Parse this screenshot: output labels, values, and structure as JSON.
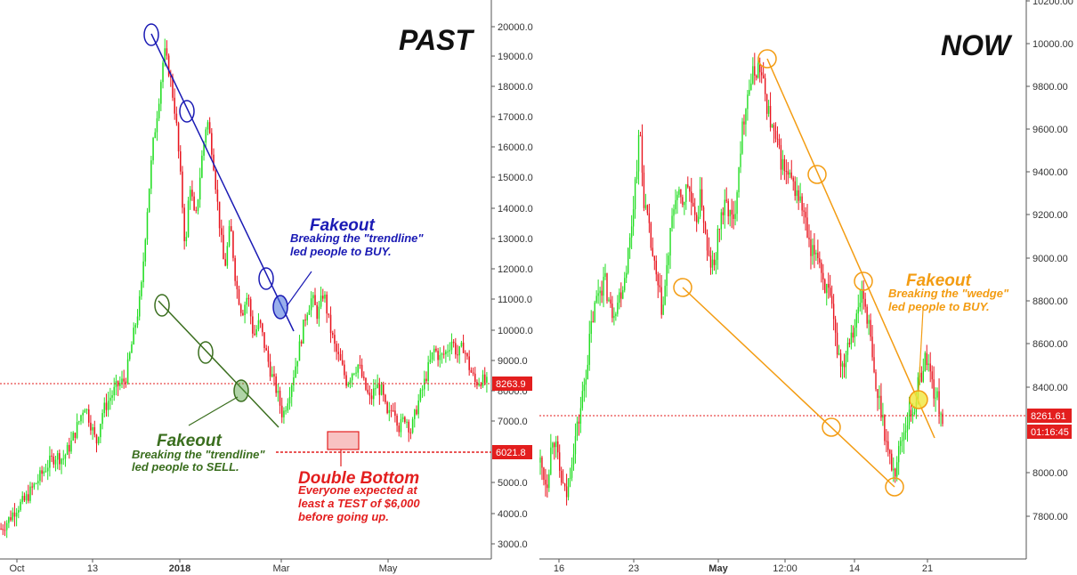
{
  "chart_data": [
    {
      "type": "candlestick",
      "panel": "left",
      "title": "PAST",
      "ylim": [
        2500,
        21000
      ],
      "y_ticks": [
        "20000.0",
        "19000.0",
        "18000.0",
        "17000.0",
        "16000.0",
        "15000.0",
        "14000.0",
        "13000.0",
        "12000.0",
        "11000.0",
        "10000.0",
        "9000.0",
        "8000.0",
        "7000.0",
        "5000.0",
        "4000.0",
        "3000.0"
      ],
      "x_ticks": [
        {
          "label": "Oct",
          "bold": false
        },
        {
          "label": "13",
          "bold": false
        },
        {
          "label": "2018",
          "bold": true
        },
        {
          "label": "Mar",
          "bold": false
        },
        {
          "label": "May",
          "bold": false
        }
      ],
      "price_lines": [
        {
          "value": 8263.9,
          "label": "8263.9",
          "color": "#e31e1e"
        },
        {
          "value": 6021.8,
          "label": "6021.8",
          "color": "#e31e1e"
        }
      ],
      "series": [
        {
          "name": "price",
          "points": [
            [
              0,
              3500
            ],
            [
              4,
              3800
            ],
            [
              8,
              4200
            ],
            [
              12,
              4400
            ],
            [
              16,
              4800
            ],
            [
              20,
              5200
            ],
            [
              24,
              5600
            ],
            [
              28,
              5900
            ],
            [
              32,
              5800
            ],
            [
              36,
              6300
            ],
            [
              40,
              7000
            ],
            [
              43,
              7600
            ],
            [
              46,
              7000
            ],
            [
              49,
              6300
            ],
            [
              52,
              7300
            ],
            [
              56,
              7800
            ],
            [
              60,
              8200
            ],
            [
              64,
              8400
            ],
            [
              68,
              9800
            ],
            [
              72,
              11200
            ],
            [
              75,
              13800
            ],
            [
              78,
              16000
            ],
            [
              81,
              17500
            ],
            [
              84,
              19200
            ],
            [
              87,
              18400
            ],
            [
              90,
              17000
            ],
            [
              93,
              14500
            ],
            [
              95,
              12500
            ],
            [
              97,
              15000
            ],
            [
              100,
              13500
            ],
            [
              103,
              15500
            ],
            [
              106,
              17000
            ],
            [
              109,
              15800
            ],
            [
              112,
              13800
            ],
            [
              115,
              12000
            ],
            [
              118,
              13500
            ],
            [
              121,
              11500
            ],
            [
              124,
              10600
            ],
            [
              127,
              11200
            ],
            [
              130,
              9800
            ],
            [
              133,
              10300
            ],
            [
              136,
              9400
            ],
            [
              139,
              8600
            ],
            [
              142,
              8000
            ],
            [
              145,
              7200
            ],
            [
              148,
              7900
            ],
            [
              151,
              8700
            ],
            [
              154,
              9600
            ],
            [
              157,
              10600
            ],
            [
              160,
              11100
            ],
            [
              163,
              10500
            ],
            [
              166,
              11300
            ],
            [
              169,
              10200
            ],
            [
              172,
              9400
            ],
            [
              175,
              8900
            ],
            [
              178,
              8300
            ],
            [
              181,
              8700
            ],
            [
              184,
              8900
            ],
            [
              187,
              8200
            ],
            [
              190,
              7700
            ],
            [
              193,
              8200
            ],
            [
              196,
              8000
            ],
            [
              199,
              7100
            ],
            [
              202,
              7600
            ],
            [
              205,
              6800
            ],
            [
              208,
              7200
            ],
            [
              211,
              6700
            ],
            [
              214,
              7500
            ],
            [
              217,
              8100
            ],
            [
              220,
              8800
            ],
            [
              223,
              9400
            ],
            [
              226,
              9100
            ],
            [
              229,
              9300
            ],
            [
              232,
              9700
            ],
            [
              235,
              9200
            ],
            [
              238,
              9500
            ],
            [
              241,
              8800
            ],
            [
              244,
              8300
            ],
            [
              247,
              8400
            ],
            [
              250,
              8263.9
            ]
          ]
        }
      ],
      "annotations": [
        {
          "title": "Fakeout",
          "lines": [
            "Breaking the \"trendline\"",
            "led people to BUY."
          ],
          "color": "#1a1ab4"
        },
        {
          "title": "Fakeout",
          "lines": [
            "Breaking the \"trendline\"",
            "led people to SELL."
          ],
          "color": "#3a6e1e"
        },
        {
          "title": "Double Bottom",
          "lines": [
            "Everyone expected at",
            "least  a TEST of $6,000",
            "before going up."
          ],
          "color": "#e31e1e"
        }
      ]
    },
    {
      "type": "candlestick",
      "panel": "right",
      "title": "NOW",
      "ylim": [
        7650,
        10220
      ],
      "y_ticks": [
        "10200.00",
        "10000.00",
        "9800.00",
        "9600.00",
        "9400.00",
        "9200.00",
        "9000.00",
        "8800.00",
        "8600.00",
        "8400.00",
        "8000.00",
        "7800.00"
      ],
      "x_ticks": [
        {
          "label": "16",
          "bold": false
        },
        {
          "label": "23",
          "bold": false
        },
        {
          "label": "May",
          "bold": true
        },
        {
          "label": "12:00",
          "bold": false
        },
        {
          "label": "14",
          "bold": false
        },
        {
          "label": "21",
          "bold": false
        }
      ],
      "price_lines": [
        {
          "value": 8261.61,
          "label": "8261.61",
          "color": "#e31e1e"
        }
      ],
      "countdown": "01:16:45",
      "series": [
        {
          "name": "price",
          "points": [
            [
              0,
              8050
            ],
            [
              4,
              7950
            ],
            [
              8,
              8200
            ],
            [
              12,
              8000
            ],
            [
              16,
              7880
            ],
            [
              20,
              8100
            ],
            [
              24,
              8250
            ],
            [
              28,
              8450
            ],
            [
              32,
              8700
            ],
            [
              36,
              8850
            ],
            [
              40,
              8900
            ],
            [
              44,
              8750
            ],
            [
              48,
              8800
            ],
            [
              52,
              8900
            ],
            [
              56,
              9100
            ],
            [
              60,
              9450
            ],
            [
              62,
              9600
            ],
            [
              64,
              9300
            ],
            [
              68,
              9100
            ],
            [
              72,
              8900
            ],
            [
              76,
              8750
            ],
            [
              80,
              9050
            ],
            [
              84,
              9300
            ],
            [
              88,
              9250
            ],
            [
              92,
              9350
            ],
            [
              96,
              9150
            ],
            [
              100,
              9300
            ],
            [
              104,
              9000
            ],
            [
              108,
              8950
            ],
            [
              112,
              9200
            ],
            [
              116,
              9250
            ],
            [
              120,
              9150
            ],
            [
              124,
              9500
            ],
            [
              128,
              9750
            ],
            [
              132,
              9850
            ],
            [
              136,
              9900
            ],
            [
              140,
              9750
            ],
            [
              144,
              9600
            ],
            [
              148,
              9500
            ],
            [
              152,
              9400
            ],
            [
              156,
              9350
            ],
            [
              160,
              9300
            ],
            [
              164,
              9200
            ],
            [
              168,
              9000
            ],
            [
              172,
              9050
            ],
            [
              176,
              8900
            ],
            [
              180,
              8800
            ],
            [
              184,
              8600
            ],
            [
              188,
              8500
            ],
            [
              192,
              8650
            ],
            [
              196,
              8700
            ],
            [
              200,
              8850
            ],
            [
              204,
              8700
            ],
            [
              208,
              8400
            ],
            [
              212,
              8300
            ],
            [
              216,
              8100
            ],
            [
              220,
              8000
            ],
            [
              224,
              8150
            ],
            [
              228,
              8250
            ],
            [
              232,
              8300
            ],
            [
              236,
              8450
            ],
            [
              240,
              8550
            ],
            [
              244,
              8400
            ],
            [
              250,
              8261.61
            ]
          ]
        }
      ],
      "annotations": [
        {
          "title": "Fakeout",
          "lines": [
            "Breaking the \"wedge\"",
            "led people to BUY."
          ],
          "color": "#f39c12"
        }
      ]
    }
  ],
  "colors": {
    "bull": "#22dd22",
    "bear": "#e8141e",
    "blue": "#1a1ab4",
    "green": "#3a6e1e",
    "orange": "#f39c12",
    "red": "#e31e1e"
  }
}
